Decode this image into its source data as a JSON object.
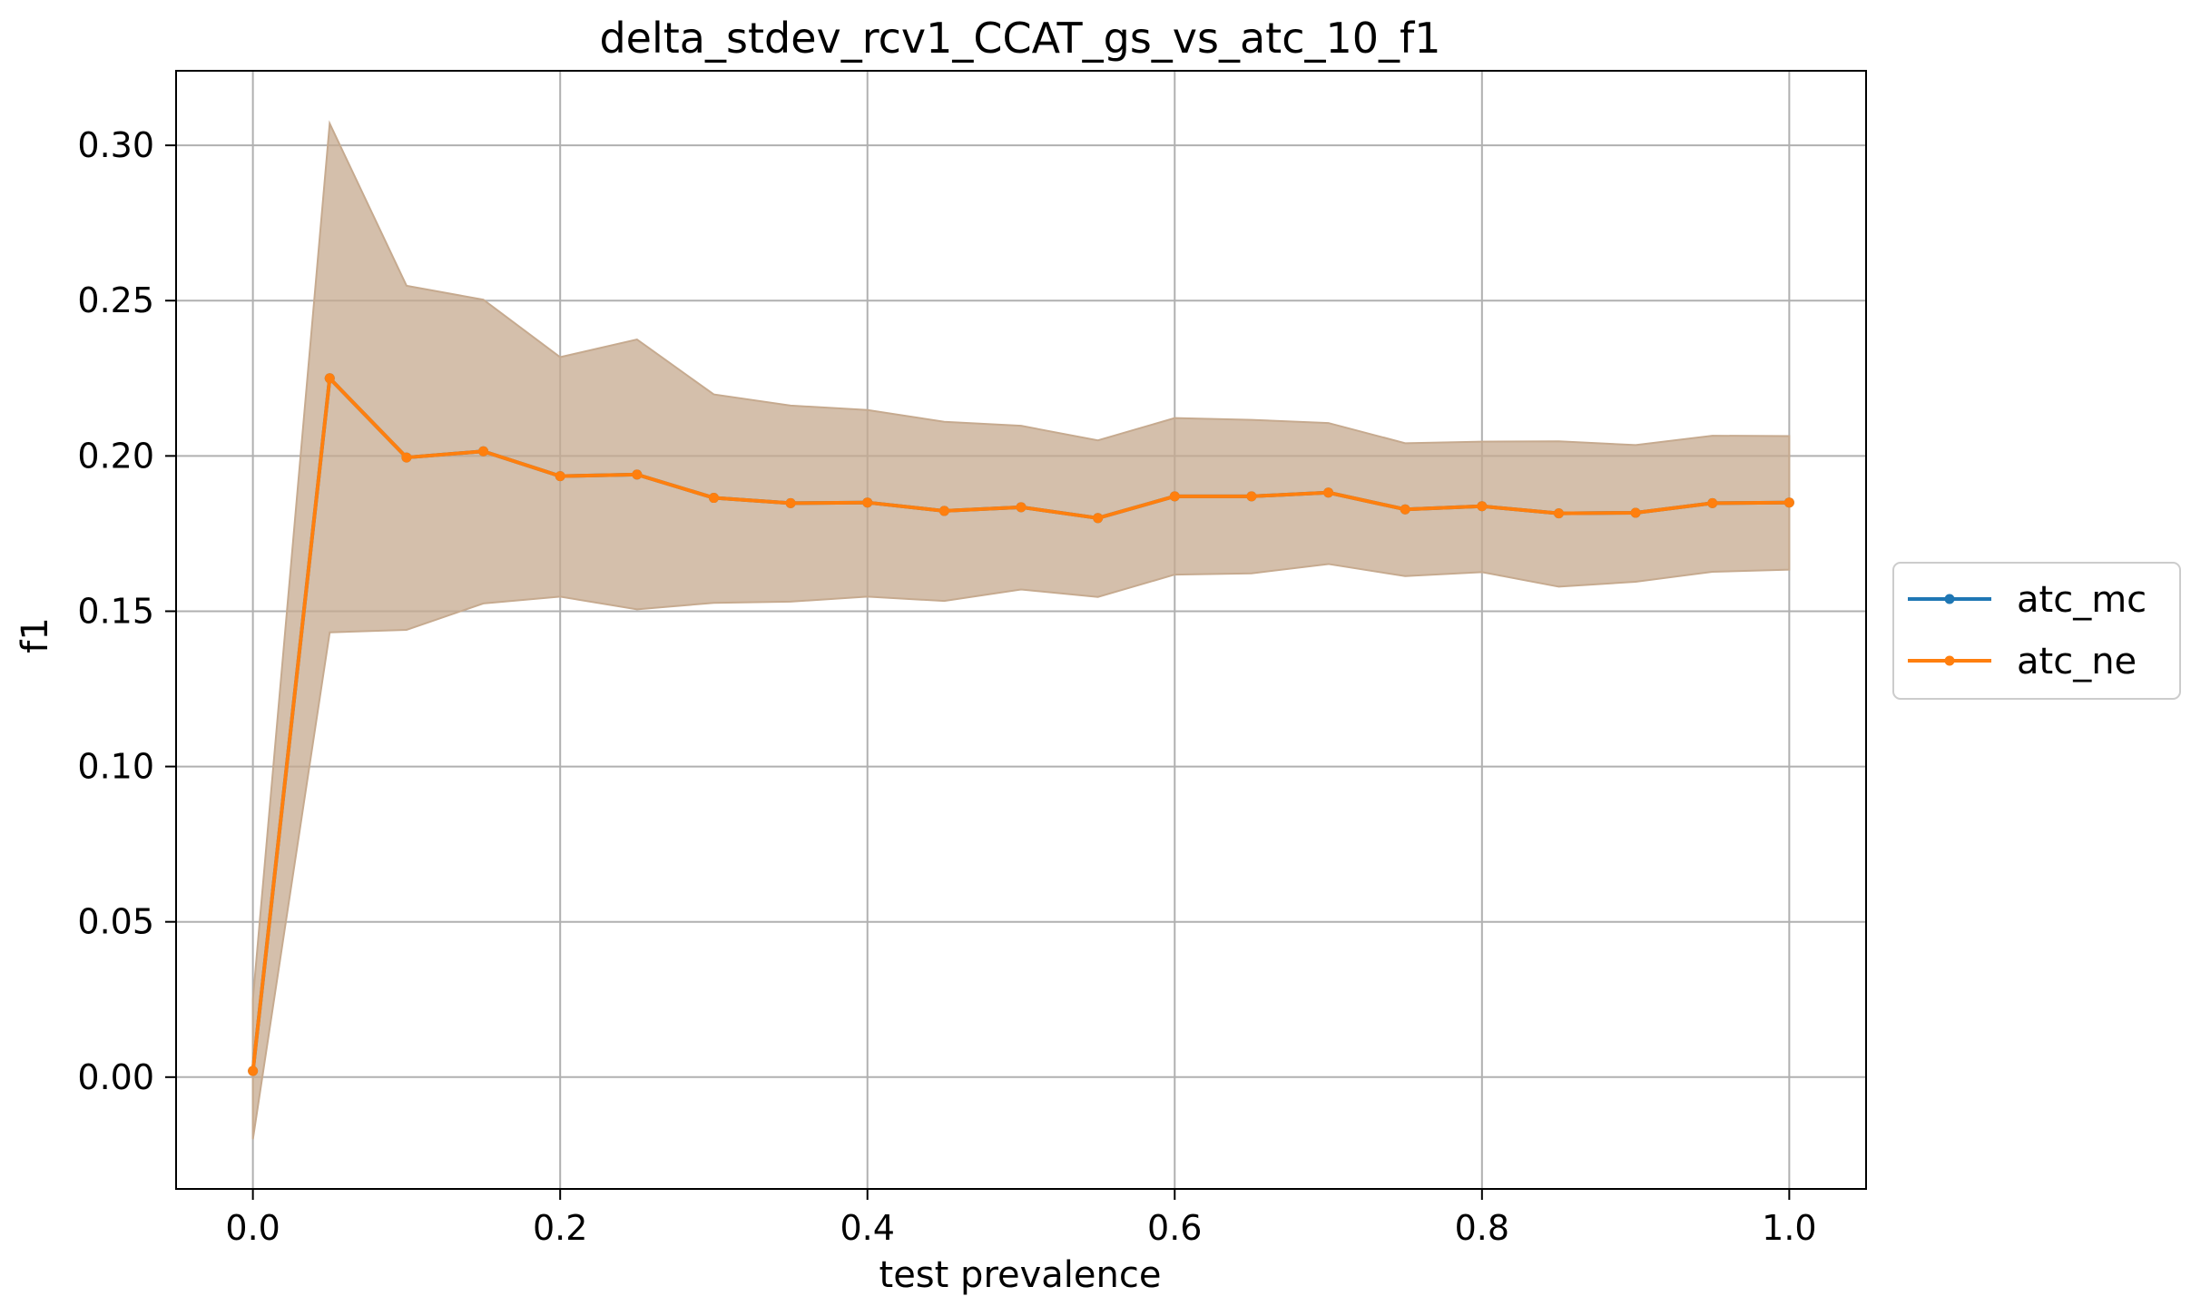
{
  "chart_data": {
    "type": "line",
    "title": "delta_stdev_rcv1_CCAT_gs_vs_atc_10_f1",
    "xlabel": "test prevalence",
    "ylabel": "f1",
    "xlim": [
      -0.05,
      1.05
    ],
    "ylim": [
      -0.036,
      0.324
    ],
    "xticks": [
      0.0,
      0.2,
      0.4,
      0.6,
      0.8,
      1.0
    ],
    "xtick_labels": [
      "0.0",
      "0.2",
      "0.4",
      "0.6",
      "0.8",
      "1.0"
    ],
    "yticks": [
      0.0,
      0.05,
      0.1,
      0.15,
      0.2,
      0.25,
      0.3
    ],
    "ytick_labels": [
      "0.00",
      "0.05",
      "0.10",
      "0.15",
      "0.20",
      "0.25",
      "0.30"
    ],
    "grid": true,
    "legend_position": "outside-right",
    "x": [
      0.0,
      0.05,
      0.1,
      0.15,
      0.2,
      0.25,
      0.3,
      0.35,
      0.4,
      0.45,
      0.5,
      0.55,
      0.6,
      0.65,
      0.7,
      0.75,
      0.8,
      0.85,
      0.9,
      0.95,
      1.0
    ],
    "series": [
      {
        "name": "atc_mc",
        "color": "#1f77b4",
        "values": [
          0.002,
          0.225,
          0.1995,
          0.2015,
          0.1935,
          0.194,
          0.1865,
          0.1848,
          0.185,
          0.1823,
          0.1835,
          0.18,
          0.187,
          0.187,
          0.1882,
          0.1828,
          0.1838,
          0.1815,
          0.1817,
          0.1848,
          0.185
        ]
      },
      {
        "name": "atc_ne",
        "color": "#ff7f0e",
        "values": [
          0.002,
          0.225,
          0.1995,
          0.2015,
          0.1935,
          0.194,
          0.1865,
          0.1848,
          0.185,
          0.1823,
          0.1835,
          0.18,
          0.187,
          0.187,
          0.1882,
          0.1828,
          0.1838,
          0.1815,
          0.1817,
          0.1848,
          0.185
        ],
        "band_upper": [
          0.025,
          0.307,
          0.2548,
          0.2503,
          0.2318,
          0.2375,
          0.2198,
          0.2162,
          0.2148,
          0.211,
          0.2097,
          0.205,
          0.2122,
          0.2116,
          0.2106,
          0.2041,
          0.2046,
          0.2047,
          0.2035,
          0.2065,
          0.2064
        ],
        "band_lower": [
          -0.02,
          0.1432,
          0.144,
          0.1525,
          0.1547,
          0.1506,
          0.1527,
          0.1531,
          0.1547,
          0.1533,
          0.157,
          0.1546,
          0.1618,
          0.1622,
          0.1652,
          0.1613,
          0.1626,
          0.1579,
          0.1595,
          0.1627,
          0.1634
        ]
      }
    ],
    "band_color": "#c6aa8f"
  }
}
